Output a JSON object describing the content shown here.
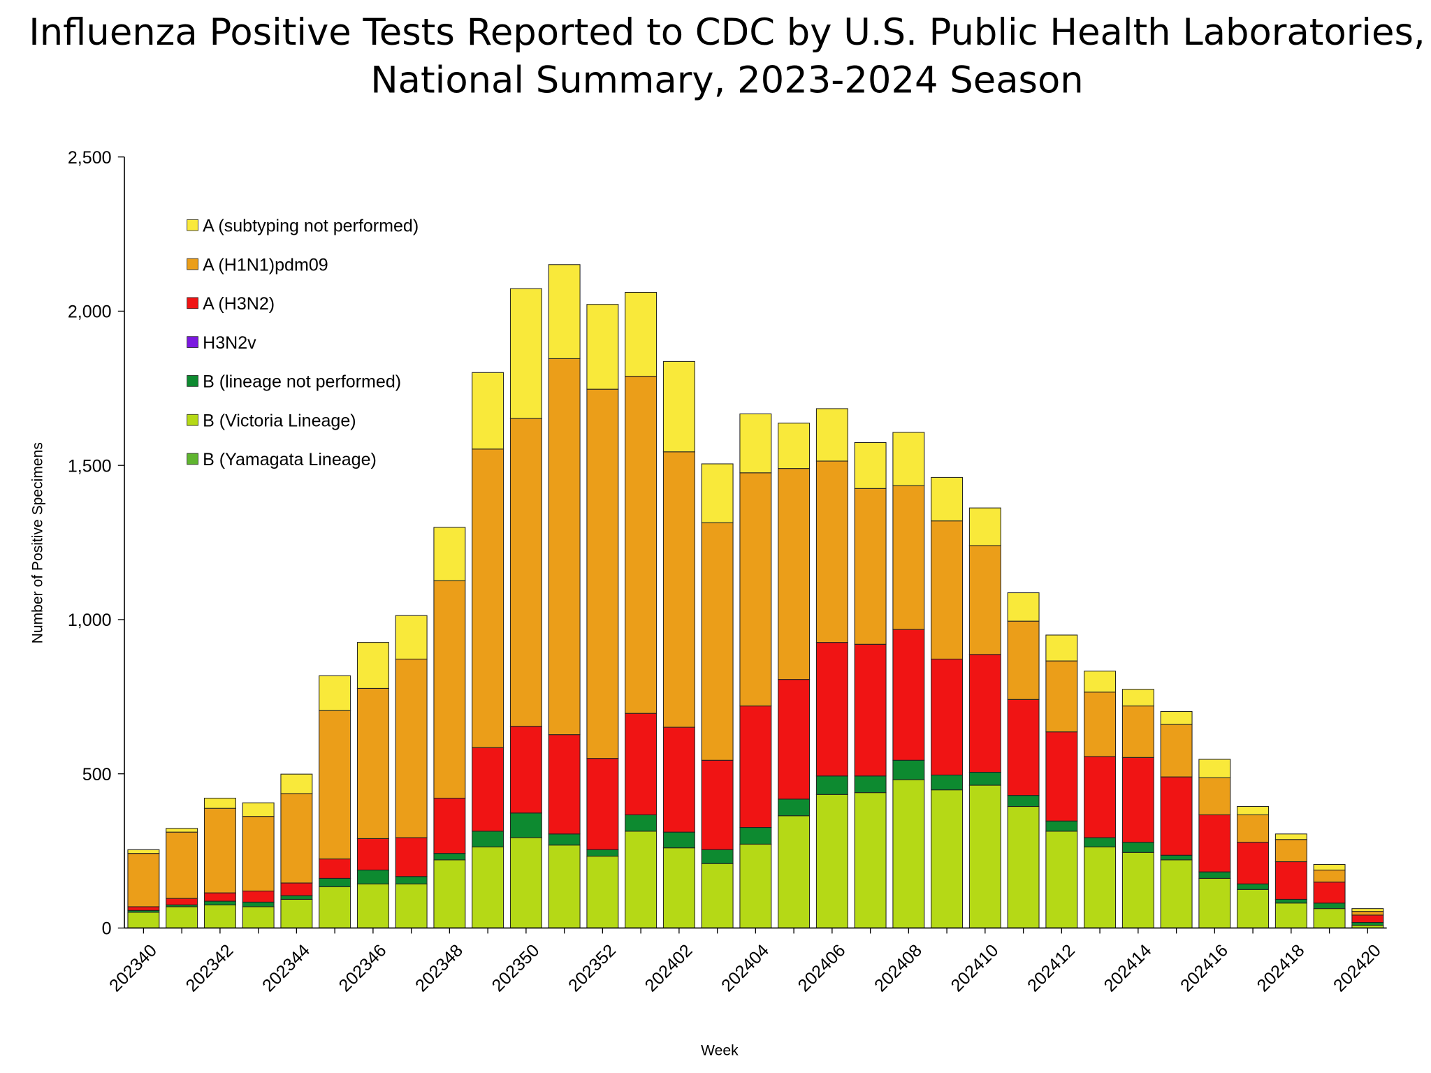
{
  "chart_data": {
    "type": "stacked-bar",
    "title": [
      "Influenza Positive Tests Reported to CDC by U.S. Public Health Laboratories,",
      "National Summary, 2023-2024 Season"
    ],
    "y_label": "Number of Positive Specimens",
    "x_label": "Week",
    "categories": [
      "202340",
      null,
      "202342",
      null,
      "202344",
      null,
      "202346",
      null,
      "202348",
      null,
      "202350",
      null,
      "202352",
      null,
      "202402",
      null,
      "202404",
      null,
      "202406",
      null,
      "202408",
      null,
      "202410",
      null,
      "202412",
      null,
      "202414",
      null,
      "202416",
      null,
      "202418",
      null,
      "202420"
    ],
    "ylim": [
      0,
      2500
    ],
    "yticks": [
      0,
      500,
      {
        "value": 1000,
        "label": "1,000"
      },
      {
        "value": 1500,
        "label": "1,500"
      },
      {
        "value": 2000,
        "label": "2,000"
      },
      {
        "value": 2500,
        "label": "2,500"
      }
    ],
    "legend_position": "upper left",
    "series": [
      {
        "name": "A (subtyping not performed)",
        "color": "#f9e93a",
        "values": [
          12,
          12,
          33,
          44,
          63,
          113,
          149,
          141,
          173,
          248,
          421,
          305,
          275,
          272,
          293,
          191,
          191,
          147,
          170,
          149,
          173,
          141,
          122,
          92,
          84,
          68,
          54,
          42,
          60,
          27,
          18,
          18,
          9
        ]
      },
      {
        "name": "A (H1N1)pdm09",
        "color": "#eb9e19",
        "values": [
          173,
          215,
          274,
          242,
          290,
          481,
          487,
          579,
          705,
          968,
          998,
          1219,
          1197,
          1093,
          893,
          770,
          756,
          684,
          588,
          505,
          466,
          448,
          353,
          254,
          230,
          209,
          167,
          170,
          120,
          89,
          72,
          39,
          12
        ]
      },
      {
        "name": "A (H3N2)",
        "color": "#f01414",
        "values": [
          12,
          21,
          27,
          36,
          41,
          63,
          102,
          126,
          179,
          271,
          281,
          322,
          296,
          329,
          340,
          290,
          394,
          388,
          433,
          427,
          424,
          376,
          382,
          311,
          289,
          263,
          275,
          254,
          185,
          135,
          122,
          68,
          24
        ]
      },
      {
        "name": "H3N2v",
        "color": "#7b18e0",
        "values": [
          0,
          0,
          0,
          0,
          0,
          0,
          0,
          0,
          0,
          0,
          0,
          0,
          0,
          0,
          0,
          0,
          0,
          0,
          0,
          0,
          0,
          0,
          0,
          0,
          0,
          0,
          0,
          0,
          0,
          0,
          0,
          0,
          0
        ]
      },
      {
        "name": "B (lineage not performed)",
        "color": "#0d8a30",
        "values": [
          6,
          6,
          12,
          15,
          12,
          27,
          45,
          24,
          21,
          51,
          80,
          36,
          21,
          53,
          51,
          45,
          54,
          54,
          60,
          54,
          63,
          48,
          42,
          36,
          33,
          30,
          33,
          15,
          21,
          18,
          12,
          18,
          9
        ]
      },
      {
        "name": "B (Victoria Lineage)",
        "color": "#b5d916",
        "values": [
          51,
          69,
          75,
          69,
          93,
          134,
          143,
          143,
          221,
          263,
          293,
          269,
          233,
          314,
          260,
          209,
          272,
          364,
          433,
          439,
          481,
          448,
          463,
          394,
          314,
          263,
          245,
          221,
          161,
          125,
          81,
          63,
          9
        ]
      },
      {
        "name": "B (Yamagata Lineage)",
        "color": "#5fb52f",
        "values": [
          0,
          0,
          0,
          0,
          0,
          0,
          0,
          0,
          0,
          0,
          0,
          0,
          0,
          0,
          0,
          0,
          0,
          0,
          0,
          0,
          0,
          0,
          0,
          0,
          0,
          0,
          0,
          0,
          0,
          0,
          0,
          0,
          0
        ]
      }
    ]
  }
}
